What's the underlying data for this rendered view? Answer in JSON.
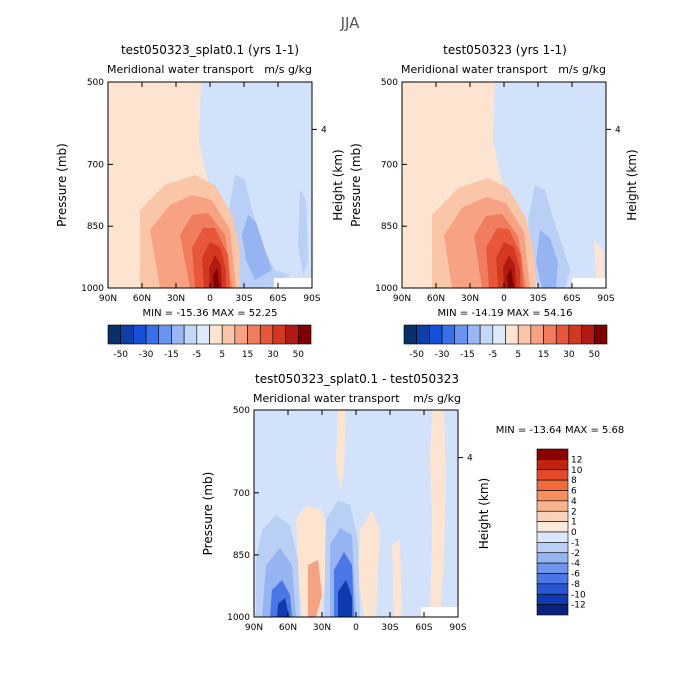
{
  "figure_title": "JJA",
  "chart_data": [
    {
      "type": "heatmap",
      "title": "test050323_splat0.1 (yrs 1-1)",
      "subtitle_left": "Meridional water transport",
      "subtitle_right": "m/s g/kg",
      "xlabel": "",
      "ylabel": "Pressure (mb)",
      "right_axis_label": "Height (km)",
      "right_axis_tick": "4",
      "x_ticks": [
        "90N",
        "60N",
        "30N",
        "0",
        "30S",
        "60S",
        "90S"
      ],
      "y_ticks": [
        "500",
        "700",
        "850",
        "1000"
      ],
      "stats": "MIN = -15.36   MAX =  52.25",
      "xlim": [
        90,
        -90
      ],
      "ylim": [
        1000,
        500
      ]
    },
    {
      "type": "heatmap",
      "title": "test050323 (yrs 1-1)",
      "subtitle_left": "Meridional water transport",
      "subtitle_right": "m/s g/kg",
      "xlabel": "",
      "ylabel": "Pressure (mb)",
      "right_axis_label": "Height (km)",
      "right_axis_tick": "4",
      "x_ticks": [
        "90N",
        "60N",
        "30N",
        "0",
        "30S",
        "60S",
        "90S"
      ],
      "y_ticks": [
        "500",
        "700",
        "850",
        "1000"
      ],
      "stats": "MIN = -14.19   MAX =  54.16",
      "xlim": [
        90,
        -90
      ],
      "ylim": [
        1000,
        500
      ]
    },
    {
      "type": "heatmap",
      "title": "test050323_splat0.1 - test050323",
      "subtitle_left": "Meridional water transport",
      "subtitle_right": "m/s g/kg",
      "xlabel": "",
      "ylabel": "Pressure (mb)",
      "right_axis_label": "Height (km)",
      "right_axis_tick": "4",
      "x_ticks": [
        "90N",
        "60N",
        "30N",
        "0",
        "30S",
        "60S",
        "90S"
      ],
      "y_ticks": [
        "500",
        "700",
        "850",
        "1000"
      ],
      "stats": "MIN = -13.64   MAX =   5.68",
      "xlim": [
        90,
        -90
      ],
      "ylim": [
        1000,
        500
      ]
    }
  ],
  "colorbar_top": {
    "labels": [
      "-50",
      "-30",
      "-15",
      "-5",
      "5",
      "15",
      "30",
      "50"
    ],
    "colors": [
      "#08306b",
      "#0d3fa8",
      "#1450d8",
      "#3a6fea",
      "#6b93f0",
      "#9ab7f5",
      "#c5d8fa",
      "#ddeafb",
      "#fde4d0",
      "#fac6a8",
      "#f6a283",
      "#f07e5e",
      "#e8573a",
      "#d23a1f",
      "#b01a12",
      "#800000"
    ]
  },
  "colorbar_diff": {
    "labels": [
      "12",
      "10",
      "8",
      "6",
      "4",
      "2",
      "1",
      "0",
      "-1",
      "-2",
      "-4",
      "-6",
      "-8",
      "-10",
      "-12"
    ],
    "colors": [
      "#8b0000",
      "#c0240f",
      "#e34a2a",
      "#f26a3c",
      "#f6905d",
      "#f9b38d",
      "#fbd2b9",
      "#fde8dc",
      "#dbe8fb",
      "#b9cff6",
      "#95b4f1",
      "#6f95ec",
      "#4a76e6",
      "#2856d5",
      "#103bb0",
      "#0a247d"
    ]
  }
}
